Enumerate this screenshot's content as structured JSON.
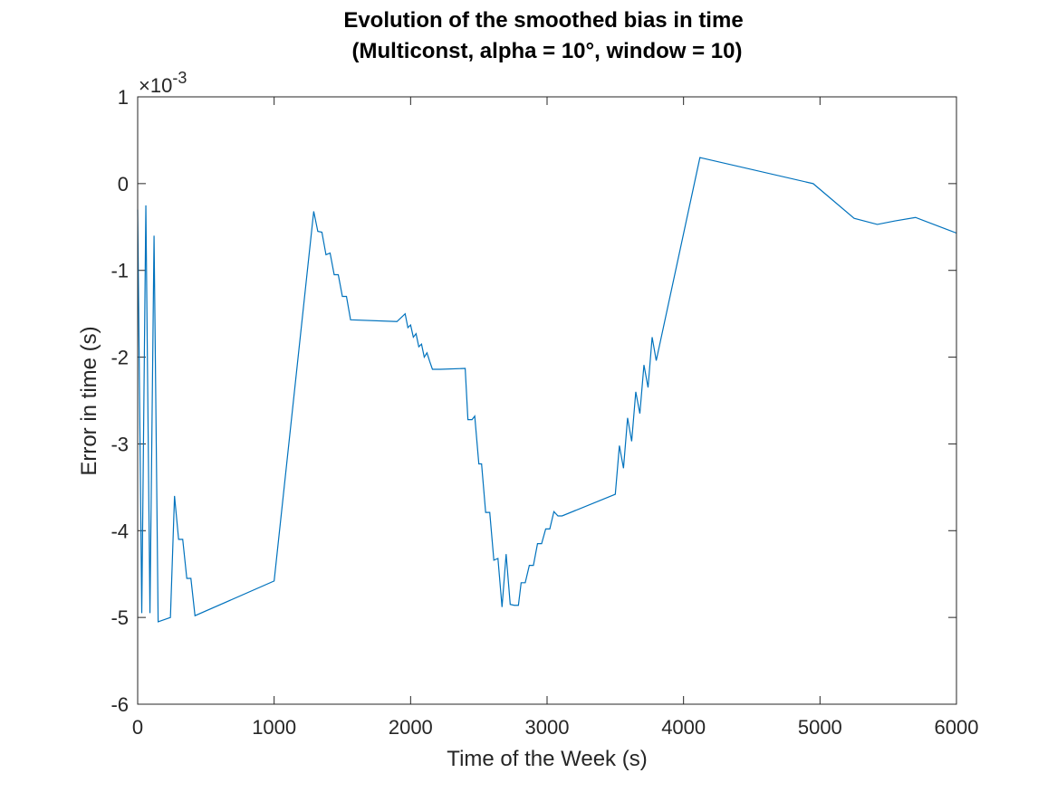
{
  "chart_data": {
    "type": "line",
    "title": "Evolution of the smoothed bias in time",
    "subtitle": "(Multiconst, alpha = 10°, window = 10)",
    "xlabel": "Time of the Week (s)",
    "ylabel": "Error in time (s)",
    "y_exponent_base": "×10",
    "y_exponent_power": "-3",
    "xlim": [
      0,
      6000
    ],
    "ylim": [
      -6,
      1
    ],
    "xticks": [
      0,
      1000,
      2000,
      3000,
      4000,
      5000,
      6000
    ],
    "yticks": [
      1,
      0,
      -1,
      -2,
      -3,
      -4,
      -5,
      -6
    ],
    "grid": false,
    "series_color": "#0072BD",
    "series": [
      {
        "x": [
          0,
          30,
          60,
          90,
          120,
          150,
          240,
          270,
          300,
          330,
          360,
          390,
          420,
          1000,
          1290,
          1320,
          1350,
          1380,
          1410,
          1440,
          1470,
          1500,
          1530,
          1560,
          1900,
          1960,
          1980,
          2000,
          2020,
          2040,
          2060,
          2080,
          2100,
          2120,
          2140,
          2160,
          2180,
          2200,
          2220,
          2400,
          2420,
          2450,
          2470,
          2500,
          2520,
          2550,
          2580,
          2610,
          2640,
          2670,
          2700,
          2730,
          2760,
          2790,
          2810,
          2840,
          2870,
          2900,
          2930,
          2960,
          2990,
          3020,
          3050,
          3080,
          3110,
          3500,
          3530,
          3560,
          3590,
          3620,
          3650,
          3680,
          3710,
          3740,
          3770,
          3800,
          4120,
          4950,
          5250,
          5420,
          5550,
          5700,
          6000
        ],
        "y": [
          -0.3,
          -4.95,
          -0.25,
          -4.95,
          -0.6,
          -5.05,
          -5.0,
          -3.6,
          -4.1,
          -4.1,
          -4.55,
          -4.55,
          -4.98,
          -4.58,
          -0.32,
          -0.55,
          -0.56,
          -0.82,
          -0.8,
          -1.05,
          -1.05,
          -1.3,
          -1.3,
          -1.57,
          -1.59,
          -1.5,
          -1.66,
          -1.63,
          -1.77,
          -1.73,
          -1.88,
          -1.85,
          -2.0,
          -1.95,
          -2.05,
          -2.14,
          -2.14,
          -2.14,
          -2.14,
          -2.13,
          -2.72,
          -2.72,
          -2.68,
          -3.23,
          -3.23,
          -3.79,
          -3.79,
          -4.34,
          -4.32,
          -4.88,
          -4.27,
          -4.85,
          -4.86,
          -4.86,
          -4.6,
          -4.6,
          -4.4,
          -4.4,
          -4.15,
          -4.15,
          -3.98,
          -3.98,
          -3.78,
          -3.83,
          -3.83,
          -3.58,
          -3.02,
          -3.28,
          -2.7,
          -2.97,
          -2.4,
          -2.65,
          -2.09,
          -2.35,
          -1.77,
          -2.04,
          0.3,
          0.0,
          -0.4,
          -0.47,
          -0.43,
          -0.39,
          -0.57
        ]
      }
    ]
  }
}
